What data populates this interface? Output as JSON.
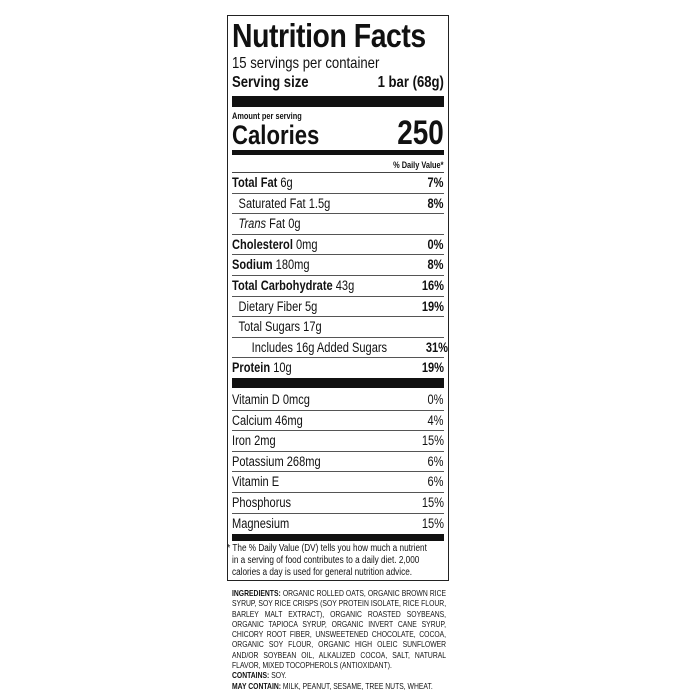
{
  "title": "Nutrition Facts",
  "servings_per_container": "15 servings per container",
  "serving_size_label": "Serving size",
  "serving_size_value": "1 bar (68g)",
  "amount_per_serving": "Amount per serving",
  "calories_label": "Calories",
  "calories_value": "250",
  "dv_header": "% Daily Value*",
  "nutrients": [
    {
      "name": "Total Fat",
      "amount": "6g",
      "dv": "7%",
      "bold": true,
      "indent": 0
    },
    {
      "name": "Saturated Fat",
      "amount": "1.5g",
      "dv": "8%",
      "bold": false,
      "indent": 1
    },
    {
      "name": "Trans",
      "name_suffix": "Fat",
      "amount": "0g",
      "dv": "",
      "bold": false,
      "indent": 1
    },
    {
      "name": "Cholesterol",
      "amount": "0mg",
      "dv": "0%",
      "bold": true,
      "indent": 0
    },
    {
      "name": "Sodium",
      "amount": "180mg",
      "dv": "8%",
      "bold": true,
      "indent": 0
    },
    {
      "name": "Total Carbohydrate",
      "amount": "43g",
      "dv": "16%",
      "bold": true,
      "indent": 0
    },
    {
      "name": "Dietary Fiber",
      "amount": "5g",
      "dv": "19%",
      "bold": false,
      "indent": 1
    },
    {
      "name": "Total Sugars",
      "amount": "17g",
      "dv": "",
      "bold": false,
      "indent": 1
    },
    {
      "name": "Includes 16g Added Sugars",
      "amount": "",
      "dv": "31%",
      "bold": false,
      "indent": 2
    },
    {
      "name": "Protein",
      "amount": "10g",
      "dv": "19%",
      "bold": true,
      "indent": 0
    }
  ],
  "vitamins": [
    {
      "name": "Vitamin D 0mcg",
      "dv": "0%"
    },
    {
      "name": "Calcium 46mg",
      "dv": "4%"
    },
    {
      "name": "Iron 2mg",
      "dv": "15%"
    },
    {
      "name": "Potassium 268mg",
      "dv": "6%"
    },
    {
      "name": "Vitamin E",
      "dv": "6%"
    },
    {
      "name": "Phosphorus",
      "dv": "15%"
    },
    {
      "name": "Magnesium",
      "dv": "15%"
    }
  ],
  "footnote": "* The % Daily Value (DV) tells you how much a nutrient in a serving of food contributes to a daily diet. 2,000 calories a day is used for general nutrition advice.",
  "ingredients_label": "Ingredients:",
  "ingredients": "Organic rolled oats, organic brown rice syrup, soy rice crisps (soy protein isolate, rice flour, barley malt extract), organic roasted soybeans, organic tapioca syrup, organic invert cane syrup, chicory root fiber, unsweetened chocolate, cocoa, organic soy flour, organic high oleic sunflower and/or soybean oil, alkalized cocoa, salt, natural flavor, mixed tocopherols (antioxidant).",
  "contains_label": "Contains:",
  "contains": "Soy.",
  "may_contain_label": "May contain:",
  "may_contain": "Milk, peanut, sesame, tree nuts, wheat."
}
